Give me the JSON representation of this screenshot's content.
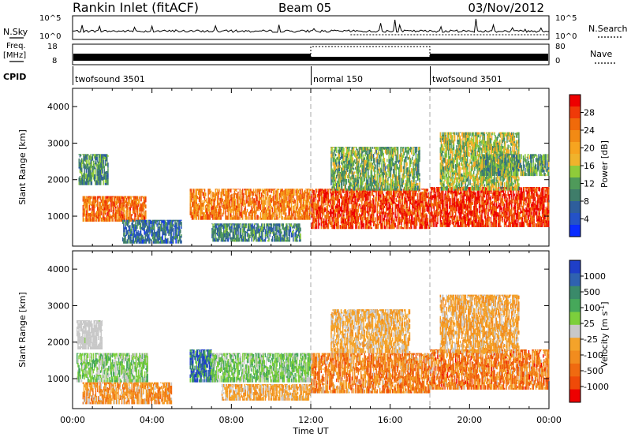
{
  "header": {
    "station": "Rankin Inlet (fitACF)",
    "beam": "Beam 05",
    "date": "03/Nov/2012"
  },
  "noise_panel": {
    "left_label": "N.Sky",
    "right_label": "N.Search",
    "ticks_left": [
      "10^5",
      "10^0"
    ],
    "ticks_right": [
      "10^5",
      "10^0"
    ]
  },
  "freq_panel": {
    "left_label_1": "Freq.",
    "left_label_2": "[MHz]",
    "right_label": "Nave",
    "ticks_left": [
      "18",
      "8"
    ],
    "ticks_right": [
      "80",
      "0"
    ]
  },
  "cpid_panel": {
    "label": "CPID",
    "segments": [
      {
        "name": "twofsound 3501",
        "start": 0,
        "end": 12
      },
      {
        "name": "normal 150",
        "start": 12,
        "end": 18
      },
      {
        "name": "twofsound 3501",
        "start": 18,
        "end": 24
      }
    ]
  },
  "colors": {
    "power_scale": [
      "#0a2cff",
      "#2452c8",
      "#2e5e9c",
      "#3f7d6a",
      "#4f9a5a",
      "#8fcb3a",
      "#f0b32c",
      "#f7a41f",
      "#f28a14",
      "#f06a0a",
      "#f03a08",
      "#ee0000"
    ],
    "velocity_scale": [
      "#1f3fc8",
      "#2f62b0",
      "#3a8a6a",
      "#46a85a",
      "#7ccf3c",
      "#c8c8c8",
      "#f4a32a",
      "#f28c1e",
      "#f06a10",
      "#ef4a08",
      "#ee0000"
    ]
  },
  "chart_data": [
    {
      "type": "heatmap",
      "title": "Power",
      "xlabel": "",
      "ylabel": "Slant Range [km]",
      "x_ticks": [
        "00:00",
        "04:00",
        "08:00",
        "12:00",
        "16:00",
        "20:00",
        "00:00"
      ],
      "xlim": [
        0,
        24
      ],
      "ylim": [
        180,
        4500
      ],
      "y_ticks": [
        1000,
        2000,
        3000,
        4000
      ],
      "colorbar": {
        "label": "Power [dB]",
        "ticks": [
          "28",
          "24",
          "20",
          "16",
          "12",
          "8",
          "4"
        ],
        "range": [
          0,
          30
        ]
      },
      "bands": [
        {
          "t0": 0.5,
          "t1": 3.7,
          "r0": 850,
          "r1": 1550,
          "level": 23
        },
        {
          "t0": 0.3,
          "t1": 1.8,
          "r0": 1850,
          "r1": 2700,
          "level": 10
        },
        {
          "t0": 2.5,
          "t1": 5.5,
          "r0": 250,
          "r1": 900,
          "level": 7
        },
        {
          "t0": 5.9,
          "t1": 12.0,
          "r0": 900,
          "r1": 1750,
          "level": 22
        },
        {
          "t0": 7.0,
          "t1": 11.5,
          "r0": 300,
          "r1": 800,
          "level": 9
        },
        {
          "t0": 12.0,
          "t1": 18.0,
          "r0": 650,
          "r1": 1750,
          "level": 26
        },
        {
          "t0": 13.0,
          "t1": 17.5,
          "r0": 1700,
          "r1": 2900,
          "level": 12
        },
        {
          "t0": 18.0,
          "t1": 24.0,
          "r0": 700,
          "r1": 1800,
          "level": 27
        },
        {
          "t0": 18.5,
          "t1": 22.5,
          "r0": 1700,
          "r1": 3300,
          "level": 14
        },
        {
          "t0": 20.5,
          "t1": 24.0,
          "r0": 2100,
          "r1": 2700,
          "level": 11
        }
      ]
    },
    {
      "type": "heatmap",
      "title": "Velocity",
      "xlabel": "Time UT",
      "ylabel": "Slant Range [km]",
      "x_ticks": [
        "00:00",
        "04:00",
        "08:00",
        "12:00",
        "16:00",
        "20:00",
        "00:00"
      ],
      "xlim": [
        0,
        24
      ],
      "ylim": [
        180,
        4500
      ],
      "y_ticks": [
        1000,
        2000,
        3000,
        4000
      ],
      "colorbar": {
        "label": "Velocity [m s^-1]",
        "ticks": [
          "1000",
          "500",
          "100",
          "25",
          "-25",
          "-100",
          "-500",
          "-1000"
        ],
        "range": [
          -1000,
          1000
        ]
      },
      "bands": [
        {
          "t0": 0.2,
          "t1": 3.8,
          "r0": 900,
          "r1": 1700,
          "level": 180
        },
        {
          "t0": 0.2,
          "t1": 1.5,
          "r0": 1800,
          "r1": 2600,
          "level": 10
        },
        {
          "t0": 0.5,
          "t1": 5.0,
          "r0": 300,
          "r1": 900,
          "level": -300
        },
        {
          "t0": 5.9,
          "t1": 7.0,
          "r0": 900,
          "r1": 1800,
          "level": 700
        },
        {
          "t0": 7.0,
          "t1": 12.0,
          "r0": 900,
          "r1": 1700,
          "level": 200
        },
        {
          "t0": 7.5,
          "t1": 12.0,
          "r0": 400,
          "r1": 850,
          "level": -200
        },
        {
          "t0": 12.0,
          "t1": 18.0,
          "r0": 600,
          "r1": 1700,
          "level": -400
        },
        {
          "t0": 13.0,
          "t1": 17.0,
          "r0": 1700,
          "r1": 2900,
          "level": -150
        },
        {
          "t0": 18.0,
          "t1": 24.0,
          "r0": 700,
          "r1": 1800,
          "level": -450
        },
        {
          "t0": 18.5,
          "t1": 22.5,
          "r0": 1700,
          "r1": 3300,
          "level": -200
        }
      ]
    }
  ]
}
